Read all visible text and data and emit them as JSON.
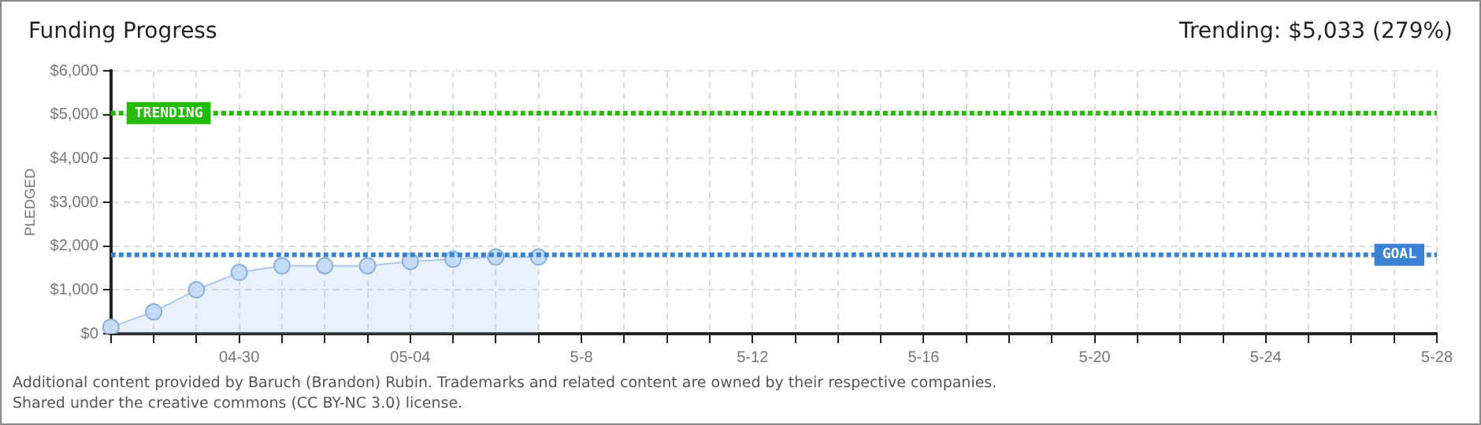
{
  "chart_data": {
    "type": "area",
    "title": "Funding Progress",
    "ylabel": "PLEDGED",
    "annotations": [
      "Trending:  $5,033 (279%)",
      "Additional content provided by Baruch (Brandon) Rubin. Trademarks and related content are owned by their respective companies.",
      "Shared under the creative commons (CC BY-NC 3.0) license."
    ],
    "categories": [
      null,
      null,
      null,
      "04-30",
      null,
      null,
      null,
      "05-04",
      null,
      null,
      null,
      "5-8",
      null,
      null,
      null,
      "5-12",
      null,
      null,
      null,
      "5-16",
      null,
      null,
      null,
      "5-20",
      null,
      null,
      null,
      "5-24",
      null,
      null,
      null,
      "5-28"
    ],
    "series": [
      {
        "color": "#a9c8ee",
        "values": [
          150,
          500,
          1000,
          1400,
          1550,
          1550,
          1550,
          1650,
          1700,
          1750,
          1750,
          null,
          null,
          null,
          null,
          null,
          null,
          null,
          null,
          null,
          null,
          null,
          null,
          null,
          null,
          null,
          null,
          null,
          null,
          null,
          null,
          null
        ]
      }
    ],
    "ylim": [
      0,
      6000
    ],
    "yticks": [
      {
        "value": 0,
        "label": "$0"
      },
      {
        "value": 1000,
        "label": "$1,000"
      },
      {
        "value": 2000,
        "label": "$2,000"
      },
      {
        "value": 3000,
        "label": "$3,000"
      },
      {
        "value": 4000,
        "label": "$4,000"
      },
      {
        "value": 5000,
        "label": "$5,000"
      },
      {
        "value": 6000,
        "label": "$6,000"
      }
    ],
    "ref_lines": [
      {
        "axis": "y",
        "value": 5033,
        "label": "TRENDING",
        "color": "#22bb00",
        "line_style": "dotted"
      },
      {
        "axis": "y",
        "value": 1800,
        "label": "GOAL",
        "color": "#3a83d4",
        "line_style": "dotted"
      }
    ],
    "grid": true,
    "marker": "circle",
    "legend": false
  }
}
